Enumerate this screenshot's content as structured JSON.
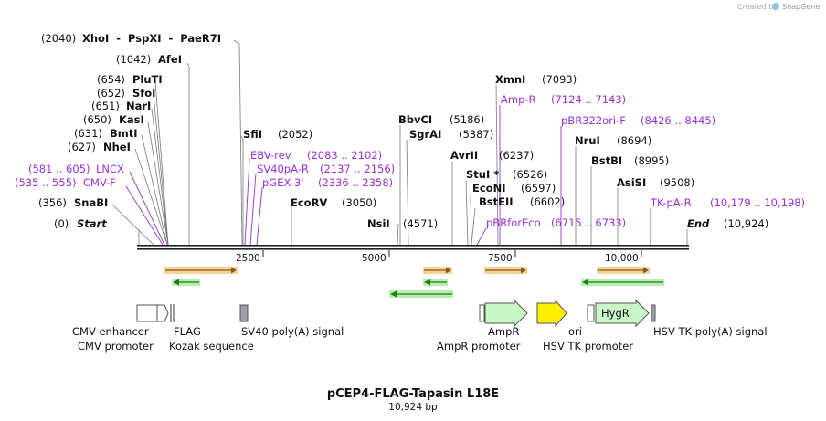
{
  "credit": "Created by",
  "credit_brand": "SnapGene",
  "plasmid": {
    "name": "pCEP4-FLAG-Tapasin L18E",
    "size": "10,924 bp",
    "length": 10924
  },
  "colors": {
    "site": "#111111",
    "primer": "#9b30d9",
    "orange": "#f0b35a",
    "green": "#8fe08f",
    "yellow": "#ffea00"
  },
  "sites": [
    {
      "pos": 2040,
      "pos_label": "(2040)",
      "name": "XhoI  -  PspXI  -  PaeR7I"
    },
    {
      "pos": 1042,
      "pos_label": "(1042)",
      "name": "AfeI"
    },
    {
      "pos": 654,
      "pos_label": "(654)",
      "name": "PluTI"
    },
    {
      "pos": 652,
      "pos_label": "(652)",
      "name": "SfoI"
    },
    {
      "pos": 651,
      "pos_label": "(651)",
      "name": "NarI"
    },
    {
      "pos": 650,
      "pos_label": "(650)",
      "name": "KasI"
    },
    {
      "pos": 631,
      "pos_label": "(631)",
      "name": "BmtI"
    },
    {
      "pos": 627,
      "pos_label": "(627)",
      "name": "NheI"
    },
    {
      "pos": 356,
      "pos_label": "(356)",
      "name": "SnaBI"
    },
    {
      "pos": 2052,
      "pos_label": "(2052)",
      "name": "SfiI"
    },
    {
      "pos": 3050,
      "pos_label": "(3050)",
      "name": "EcoRV"
    },
    {
      "pos": 4571,
      "pos_label": "(4571)",
      "name": "NsiI"
    },
    {
      "pos": 5186,
      "pos_label": "(5186)",
      "name": "BbvCI"
    },
    {
      "pos": 5387,
      "pos_label": "(5387)",
      "name": "SgrAI"
    },
    {
      "pos": 6237,
      "pos_label": "(6237)",
      "name": "AvrII"
    },
    {
      "pos": 6526,
      "pos_label": "(6526)",
      "name": "StuI *"
    },
    {
      "pos": 6597,
      "pos_label": "(6597)",
      "name": "EcoNI"
    },
    {
      "pos": 6602,
      "pos_label": "(6602)",
      "name": "BstEII"
    },
    {
      "pos": 7093,
      "pos_label": "(7093)",
      "name": "XmnI"
    },
    {
      "pos": 8694,
      "pos_label": "(8694)",
      "name": "NruI"
    },
    {
      "pos": 8995,
      "pos_label": "(8995)",
      "name": "BstBI"
    },
    {
      "pos": 9508,
      "pos_label": "(9508)",
      "name": "AsiSI"
    }
  ],
  "primers": [
    {
      "name": "LNCX",
      "range": "(581 .. 605)"
    },
    {
      "name": "CMV-F",
      "range": "(535 .. 555)"
    },
    {
      "name": "EBV-rev",
      "range": "(2083 .. 2102)"
    },
    {
      "name": "SV40pA-R",
      "range": "(2137 .. 2156)"
    },
    {
      "name": "pGEX 3'",
      "range": "(2336 .. 2358)"
    },
    {
      "name": "Amp-R",
      "range": "(7124 .. 7143)"
    },
    {
      "name": "pBR322ori-F",
      "range": "(8426 .. 8445)"
    },
    {
      "name": "pBRforEco",
      "range": "(6715 .. 6733)"
    },
    {
      "name": "TK-pA-R",
      "range": "(10,179 .. 10,198)"
    }
  ],
  "ends": {
    "start_pos": "(0)",
    "start_label": "Start",
    "end_label": "End",
    "end_pos": "(10,924)"
  },
  "ticks": [
    "2500",
    "5000",
    "7500",
    "10,000"
  ],
  "features": [
    {
      "name": "CMV enhancer"
    },
    {
      "name": "CMV promoter"
    },
    {
      "name": "FLAG"
    },
    {
      "name": "Kozak sequence"
    },
    {
      "name": "SV40 poly(A) signal"
    },
    {
      "name": "AmpR"
    },
    {
      "name": "AmpR promoter"
    },
    {
      "name": "ori"
    },
    {
      "name": "HSV TK promoter"
    },
    {
      "name": "HygR"
    },
    {
      "name": "HSV TK poly(A) signal"
    }
  ]
}
